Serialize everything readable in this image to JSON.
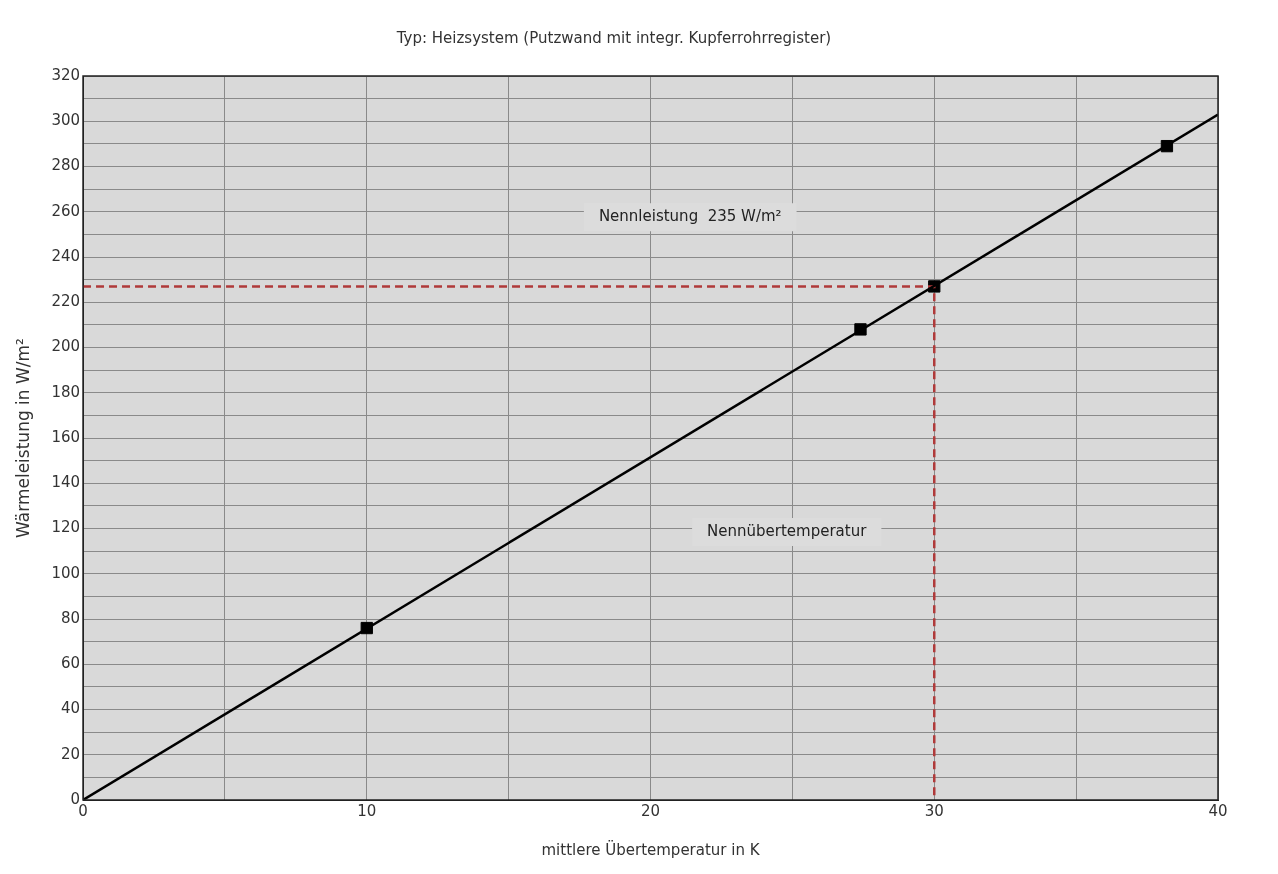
{
  "chart_data": {
    "type": "scatter",
    "title": "Typ: Heizsystem (Putzwand mit integr. Kupferrohrregister)",
    "xlabel": "mittlere Übertemperatur in K",
    "ylabel": "Wärmeleistung in W/m²",
    "series": [
      {
        "type": "line",
        "x": [
          0,
          40
        ],
        "values": [
          0,
          303
        ],
        "color": "#000000",
        "marker": "none",
        "line_style": "solid"
      },
      {
        "type": "line",
        "x": [
          0,
          30,
          30
        ],
        "values": [
          227,
          227,
          0
        ],
        "color": "#b03a3a",
        "marker": "none",
        "line_style": "dashed"
      },
      {
        "type": "scatter",
        "x": [
          10,
          27.4,
          30,
          38.2
        ],
        "values": [
          76,
          208,
          227,
          289
        ],
        "color": "#000000",
        "marker": "square"
      }
    ],
    "xlim": [
      0,
      40
    ],
    "xticks": [
      0,
      {
        "value": 5,
        "label": null
      },
      10,
      {
        "value": 15,
        "label": null
      },
      20,
      {
        "value": 25,
        "label": null
      },
      30,
      {
        "value": 35,
        "label": null
      },
      40
    ],
    "ylim": [
      0,
      320
    ],
    "yticks": [
      0,
      {
        "value": 10,
        "label": null
      },
      20,
      {
        "value": 30,
        "label": null
      },
      40,
      {
        "value": 50,
        "label": null
      },
      60,
      {
        "value": 70,
        "label": null
      },
      80,
      {
        "value": 90,
        "label": null
      },
      100,
      {
        "value": 110,
        "label": null
      },
      120,
      {
        "value": 130,
        "label": null
      },
      140,
      {
        "value": 150,
        "label": null
      },
      160,
      {
        "value": 170,
        "label": null
      },
      180,
      {
        "value": 190,
        "label": null
      },
      200,
      {
        "value": 210,
        "label": null
      },
      220,
      {
        "value": 230,
        "label": null
      },
      240,
      {
        "value": 250,
        "label": null
      },
      260,
      {
        "value": 270,
        "label": null
      },
      280,
      {
        "value": 290,
        "label": null
      },
      300,
      {
        "value": 310,
        "label": null
      },
      320
    ],
    "grid": true,
    "legend": false,
    "annotations": [
      "Nennleistung  235 W/m²",
      "Nennübertemperatur"
    ]
  }
}
